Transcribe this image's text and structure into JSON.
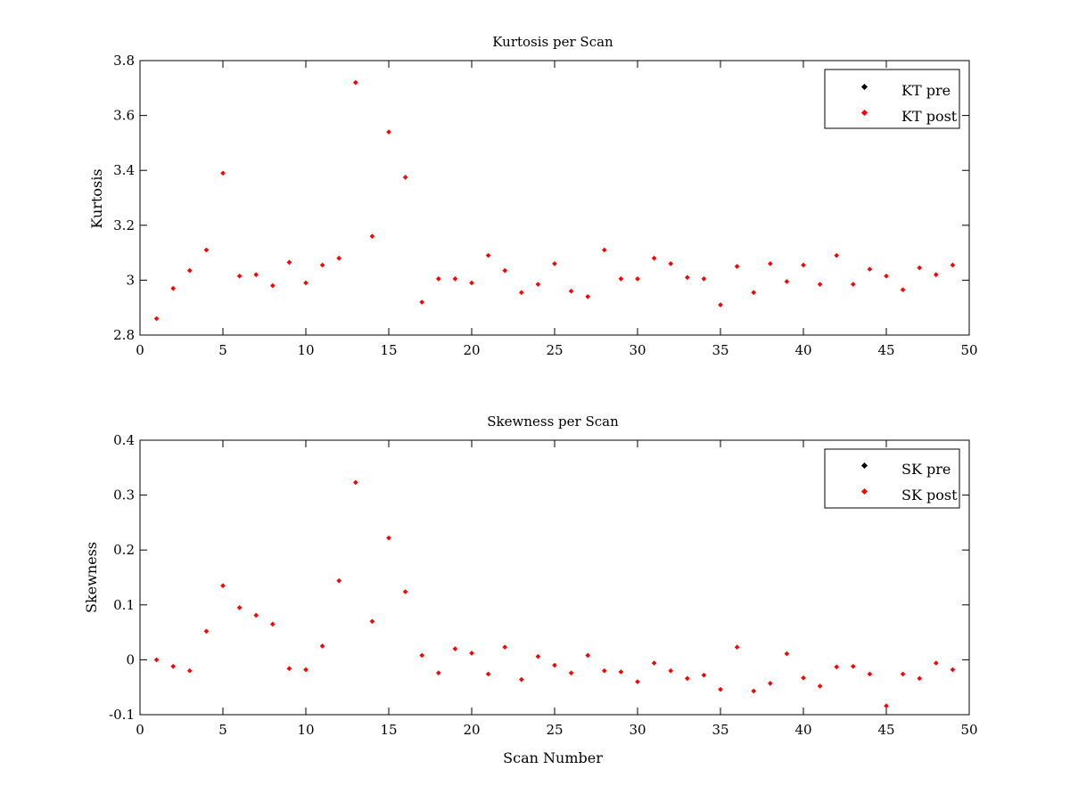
{
  "chart_data": [
    {
      "type": "scatter",
      "title": "Kurtosis per Scan",
      "xlabel": "",
      "ylabel": "Kurtosis",
      "xlim": [
        0,
        50
      ],
      "ylim": [
        2.8,
        3.8
      ],
      "xticks": [
        "0",
        "5",
        "10",
        "15",
        "20",
        "25",
        "30",
        "35",
        "40",
        "45",
        "50"
      ],
      "yticks": [
        "2.8",
        "3",
        "3.2",
        "3.4",
        "3.6",
        "3.8"
      ],
      "grid": false,
      "legend_position": "top-right",
      "series": [
        {
          "name": "KT pre",
          "color": "#000000",
          "x": [],
          "y": []
        },
        {
          "name": "KT post",
          "color": "#ff0000",
          "x": [
            1,
            2,
            3,
            4,
            5,
            6,
            7,
            8,
            9,
            10,
            11,
            12,
            13,
            14,
            15,
            16,
            17,
            18,
            19,
            20,
            21,
            22,
            23,
            24,
            25,
            26,
            27,
            28,
            29,
            30,
            31,
            32,
            33,
            34,
            35,
            36,
            37,
            38,
            39,
            40,
            41,
            42,
            43,
            44,
            45,
            46,
            47,
            48,
            49
          ],
          "y": [
            2.86,
            2.97,
            3.035,
            3.11,
            3.39,
            3.015,
            3.02,
            2.98,
            3.065,
            2.99,
            3.055,
            3.08,
            3.72,
            3.16,
            3.54,
            3.375,
            2.92,
            3.005,
            3.005,
            2.99,
            3.09,
            3.035,
            2.955,
            2.985,
            3.06,
            2.96,
            2.94,
            3.11,
            3.005,
            3.005,
            3.08,
            3.06,
            3.01,
            3.005,
            2.91,
            3.05,
            2.955,
            3.06,
            2.995,
            3.055,
            2.985,
            3.09,
            2.985,
            3.04,
            3.015,
            2.965,
            3.045,
            3.02,
            3.055
          ]
        }
      ]
    },
    {
      "type": "scatter",
      "title": "Skewness per Scan",
      "xlabel": "Scan Number",
      "ylabel": "Skewness",
      "xlim": [
        0,
        50
      ],
      "ylim": [
        -0.1,
        0.4
      ],
      "xticks": [
        "0",
        "5",
        "10",
        "15",
        "20",
        "25",
        "30",
        "35",
        "40",
        "45",
        "50"
      ],
      "yticks": [
        "-0.1",
        "0",
        "0.1",
        "0.2",
        "0.3",
        "0.4"
      ],
      "grid": false,
      "legend_position": "top-right",
      "series": [
        {
          "name": "SK pre",
          "color": "#000000",
          "x": [],
          "y": []
        },
        {
          "name": "SK post",
          "color": "#ff0000",
          "x": [
            1,
            2,
            3,
            4,
            5,
            6,
            7,
            8,
            9,
            10,
            11,
            12,
            13,
            14,
            15,
            16,
            17,
            18,
            19,
            20,
            21,
            22,
            23,
            24,
            25,
            26,
            27,
            28,
            29,
            30,
            31,
            32,
            33,
            34,
            35,
            36,
            37,
            38,
            39,
            40,
            41,
            42,
            43,
            44,
            45,
            46,
            47,
            48,
            49
          ],
          "y": [
            0,
            -0.012,
            -0.02,
            0.052,
            0.135,
            0.095,
            0.081,
            0.065,
            -0.016,
            -0.018,
            0.025,
            0.144,
            0.323,
            0.07,
            0.222,
            0.124,
            0.008,
            -0.024,
            0.02,
            0.012,
            -0.026,
            0.023,
            -0.036,
            0.006,
            -0.01,
            -0.024,
            0.008,
            -0.02,
            -0.022,
            -0.04,
            -0.006,
            -0.02,
            -0.034,
            -0.028,
            -0.054,
            0.023,
            -0.057,
            -0.043,
            0.011,
            -0.033,
            -0.048,
            -0.013,
            -0.012,
            -0.026,
            -0.084,
            -0.026,
            -0.034,
            -0.006,
            -0.018
          ]
        }
      ]
    }
  ]
}
